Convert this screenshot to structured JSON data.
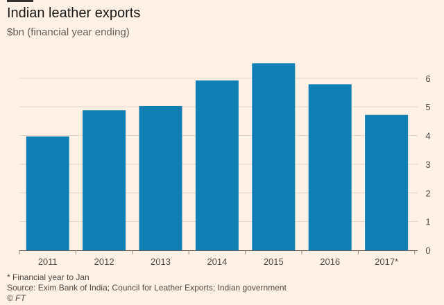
{
  "chart_data": {
    "type": "bar",
    "title": "Indian leather exports",
    "subtitle": "$bn (financial year ending)",
    "categories": [
      "2011",
      "2012",
      "2013",
      "2014",
      "2015",
      "2016",
      "2017*"
    ],
    "values": [
      3.97,
      4.88,
      5.03,
      5.92,
      6.52,
      5.79,
      4.72
    ],
    "ylim": [
      0,
      6.6
    ],
    "yticks": [
      "0",
      "1",
      "2",
      "3",
      "4",
      "5",
      "6"
    ],
    "xlabel": "",
    "ylabel": "",
    "grid": true,
    "y_axis_side": "right",
    "bar_color": "#0f7fb4",
    "background_color": "#fff1e5"
  },
  "footer": {
    "note": "* Financial year to Jan",
    "source": "Source: Exim Bank of India; Council for Leather Exports; Indian government",
    "copyright": "© FT"
  }
}
